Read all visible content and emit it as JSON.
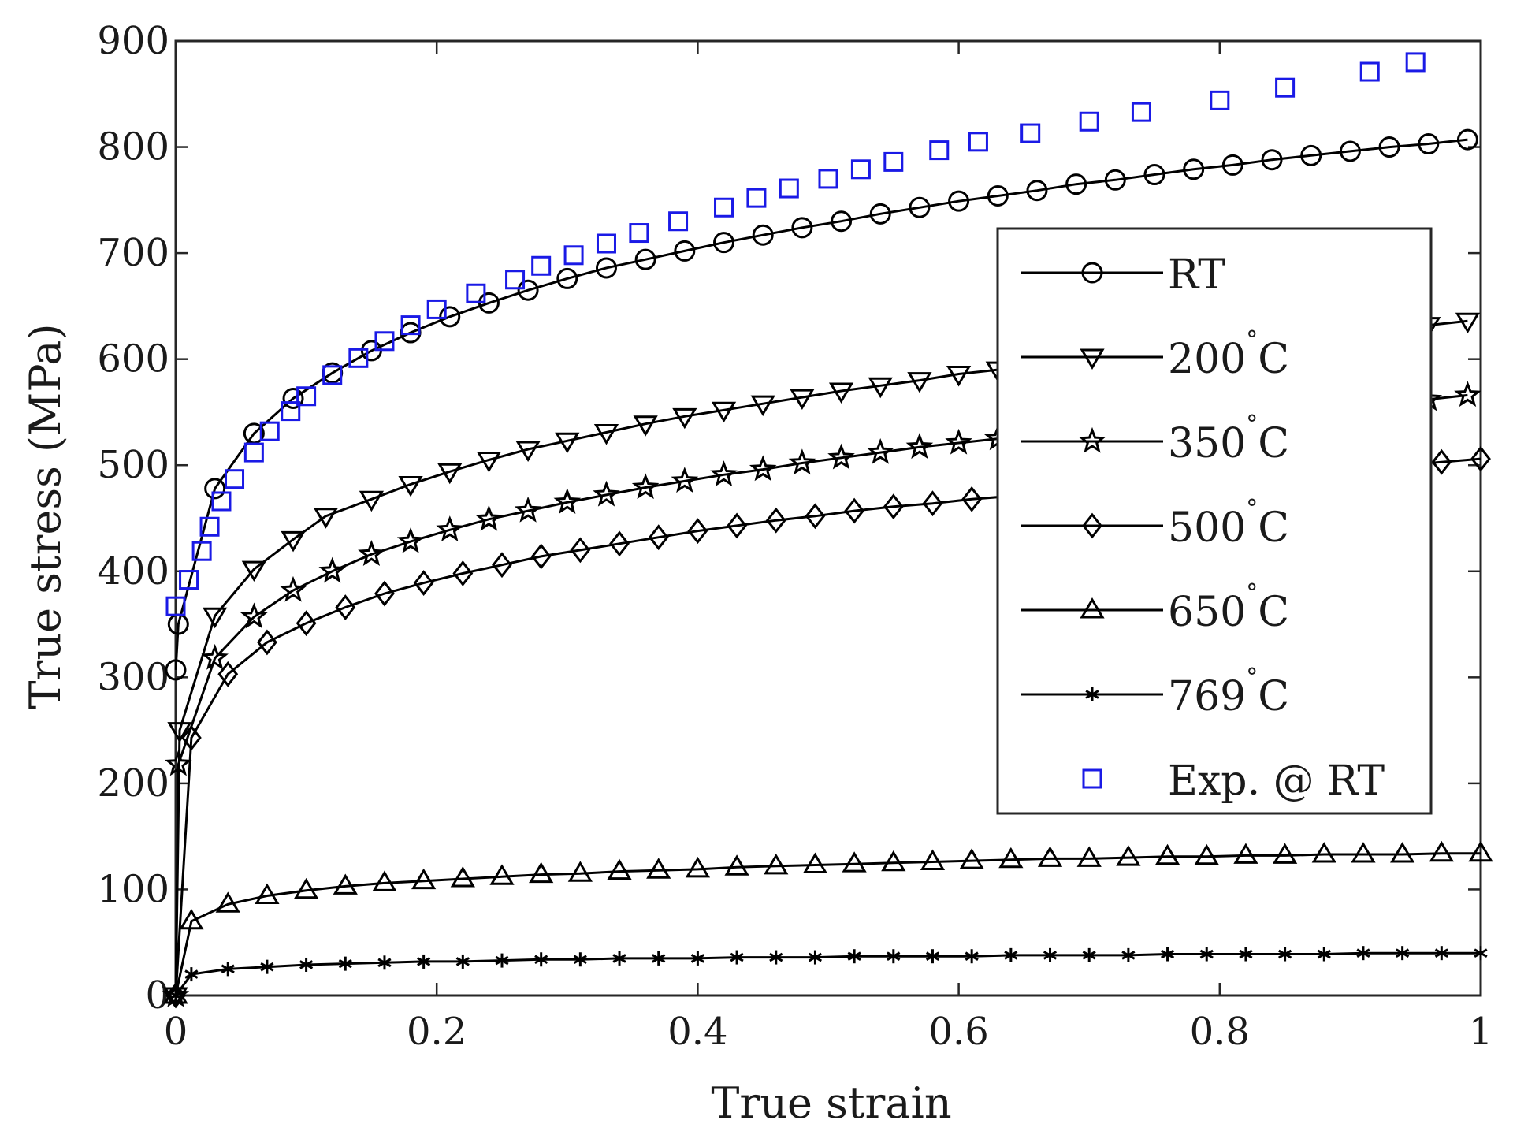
{
  "chart_data": {
    "type": "line",
    "xlabel": "True strain",
    "ylabel": "True stress (MPa)",
    "xlim": [
      0,
      1
    ],
    "ylim": [
      0,
      900
    ],
    "xticks": [
      0,
      0.2,
      0.4,
      0.6,
      0.8,
      1
    ],
    "xtick_labels": [
      "0",
      "0.2",
      "0.4",
      "0.6",
      "0.8",
      "1"
    ],
    "yticks": [
      0,
      100,
      200,
      300,
      400,
      500,
      600,
      700,
      800,
      900
    ],
    "ytick_labels": [
      "0",
      "100",
      "200",
      "300",
      "400",
      "500",
      "600",
      "700",
      "800",
      "900"
    ],
    "grid": false,
    "legend_position": "right",
    "series": [
      {
        "name": "RT",
        "label_main": "RT",
        "label_deg": "",
        "label_suffix": "",
        "marker": "circle",
        "line": true,
        "color": "#000000",
        "x": [
          0,
          0.002,
          0.03,
          0.06,
          0.09,
          0.12,
          0.15,
          0.18,
          0.21,
          0.24,
          0.27,
          0.3,
          0.33,
          0.36,
          0.39,
          0.42,
          0.45,
          0.48,
          0.51,
          0.54,
          0.57,
          0.6,
          0.63,
          0.66,
          0.69,
          0.72,
          0.75,
          0.78,
          0.81,
          0.84,
          0.87,
          0.9,
          0.93,
          0.96,
          0.99
        ],
        "y": [
          307,
          350,
          478,
          530,
          563,
          587,
          608,
          625,
          640,
          653,
          665,
          676,
          686,
          694,
          702,
          710,
          717,
          724,
          730,
          737,
          743,
          749,
          754,
          759,
          765,
          769,
          774,
          779,
          783,
          788,
          792,
          796,
          800,
          803,
          807
        ]
      },
      {
        "name": "200°C",
        "label_main": "200",
        "label_deg": "°",
        "label_suffix": "C",
        "marker": "triangle-down",
        "line": true,
        "color": "#000000",
        "x": [
          0,
          0.003,
          0.03,
          0.06,
          0.09,
          0.115,
          0.15,
          0.18,
          0.21,
          0.24,
          0.27,
          0.3,
          0.33,
          0.36,
          0.39,
          0.42,
          0.45,
          0.48,
          0.51,
          0.54,
          0.57,
          0.6,
          0.63,
          0.96,
          0.99
        ],
        "y": [
          0,
          250,
          358,
          402,
          430,
          452,
          468,
          482,
          494,
          505,
          515,
          523,
          531,
          539,
          546,
          552,
          558,
          564,
          570,
          575,
          580,
          586,
          590,
          632,
          636
        ]
      },
      {
        "name": "350°C",
        "label_main": "350",
        "label_deg": "°",
        "label_suffix": "C",
        "marker": "star",
        "line": true,
        "color": "#000000",
        "x": [
          0,
          0.002,
          0.03,
          0.06,
          0.09,
          0.12,
          0.15,
          0.18,
          0.21,
          0.24,
          0.27,
          0.3,
          0.33,
          0.36,
          0.39,
          0.42,
          0.45,
          0.48,
          0.51,
          0.54,
          0.57,
          0.6,
          0.63,
          0.96,
          0.99
        ],
        "y": [
          0,
          218,
          318,
          357,
          382,
          400,
          416,
          428,
          439,
          449,
          457,
          465,
          472,
          479,
          485,
          491,
          496,
          502,
          507,
          512,
          517,
          521,
          525,
          562,
          566
        ]
      },
      {
        "name": "500°C",
        "label_main": "500",
        "label_deg": "°",
        "label_suffix": "C",
        "marker": "diamond",
        "line": true,
        "color": "#000000",
        "x": [
          0,
          0.012,
          0.04,
          0.07,
          0.1,
          0.13,
          0.16,
          0.19,
          0.22,
          0.25,
          0.28,
          0.31,
          0.34,
          0.37,
          0.4,
          0.43,
          0.46,
          0.49,
          0.52,
          0.55,
          0.58,
          0.61,
          0.97,
          1.0
        ],
        "y": [
          0,
          243,
          303,
          333,
          351,
          366,
          379,
          389,
          398,
          406,
          414,
          420,
          426,
          432,
          438,
          443,
          448,
          452,
          457,
          461,
          464,
          468,
          503,
          506
        ]
      },
      {
        "name": "650°C",
        "label_main": "650",
        "label_deg": "°",
        "label_suffix": "C",
        "marker": "triangle-up",
        "line": true,
        "color": "#000000",
        "x": [
          0,
          0.012,
          0.04,
          0.07,
          0.1,
          0.13,
          0.16,
          0.19,
          0.22,
          0.25,
          0.28,
          0.31,
          0.34,
          0.37,
          0.4,
          0.43,
          0.46,
          0.49,
          0.52,
          0.55,
          0.58,
          0.61,
          0.64,
          0.67,
          0.7,
          0.73,
          0.76,
          0.79,
          0.82,
          0.85,
          0.88,
          0.91,
          0.94,
          0.97,
          1.0
        ],
        "y": [
          0,
          70,
          86,
          94,
          99,
          103,
          106,
          108,
          110,
          112,
          114,
          115,
          117,
          118,
          119,
          121,
          122,
          123,
          124,
          125,
          126,
          127,
          128,
          129,
          129,
          130,
          131,
          131,
          132,
          132,
          133,
          133,
          133,
          134,
          134
        ]
      },
      {
        "name": "769°C",
        "label_main": "769",
        "label_deg": "°",
        "label_suffix": "C",
        "marker": "asterisk",
        "line": true,
        "color": "#000000",
        "x": [
          0,
          0.012,
          0.04,
          0.07,
          0.1,
          0.13,
          0.16,
          0.19,
          0.22,
          0.25,
          0.28,
          0.31,
          0.34,
          0.37,
          0.4,
          0.43,
          0.46,
          0.49,
          0.52,
          0.55,
          0.58,
          0.61,
          0.64,
          0.67,
          0.7,
          0.73,
          0.76,
          0.79,
          0.82,
          0.85,
          0.88,
          0.91,
          0.94,
          0.97,
          1.0
        ],
        "y": [
          0,
          20,
          25,
          27,
          29,
          30,
          31,
          32,
          32,
          33,
          34,
          34,
          35,
          35,
          35,
          36,
          36,
          36,
          37,
          37,
          37,
          37,
          38,
          38,
          38,
          38,
          39,
          39,
          39,
          39,
          39,
          40,
          40,
          40,
          40
        ]
      },
      {
        "name": "Exp. @ RT",
        "label_main": "Exp. @ RT",
        "label_deg": "",
        "label_suffix": "",
        "marker": "square",
        "line": false,
        "color": "#1a1ae6",
        "x": [
          0.0,
          0.01,
          0.02,
          0.026,
          0.035,
          0.045,
          0.06,
          0.072,
          0.088,
          0.1,
          0.12,
          0.14,
          0.16,
          0.18,
          0.2,
          0.23,
          0.26,
          0.28,
          0.305,
          0.33,
          0.355,
          0.385,
          0.42,
          0.445,
          0.47,
          0.5,
          0.525,
          0.55,
          0.585,
          0.615,
          0.655,
          0.7,
          0.74,
          0.8,
          0.85,
          0.915,
          0.95
        ],
        "y": [
          367,
          392,
          419,
          442,
          466,
          487,
          512,
          532,
          551,
          565,
          585,
          601,
          617,
          632,
          647,
          662,
          675,
          688,
          698,
          709,
          719,
          730,
          743,
          752,
          761,
          770,
          779,
          786,
          797,
          805,
          813,
          824,
          833,
          844,
          856,
          871,
          880
        ]
      }
    ]
  }
}
